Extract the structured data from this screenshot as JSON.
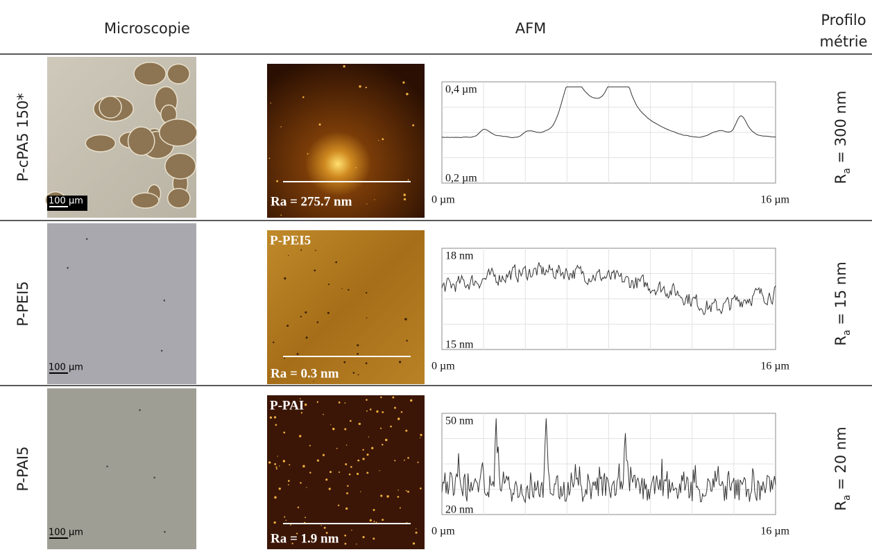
{
  "header": {
    "microscopy": "Microscopie",
    "afm": "AFM",
    "profilometry": [
      "Profilo",
      "métrie"
    ]
  },
  "rows": [
    {
      "label": "P-cPA5 150*",
      "scale_bar": "100 µm",
      "afm_ra": "Ra = 275.7 nm",
      "profile": {
        "y_top": "0,4 µm",
        "y_bottom": "0,2 µm",
        "x_left": "0 µm",
        "x_right": "16 µm"
      },
      "ra": {
        "symbol": "R",
        "subscript": "a",
        "text": " = 300 nm"
      }
    },
    {
      "label": "P-PEI5",
      "scale_bar": "100 µm",
      "afm_name": "P-PEI5",
      "afm_ra": "Ra = 0.3 nm",
      "profile": {
        "y_top": "18 nm",
        "y_bottom": "15 nm",
        "x_left": "0 µm",
        "x_right": "16 µm"
      },
      "ra": {
        "symbol": "R",
        "subscript": "a",
        "text": " = 15 nm"
      }
    },
    {
      "label": "P-PAI5",
      "scale_bar": "100 µm",
      "afm_name": "P-PAI",
      "afm_ra": "Ra = 1.9 nm",
      "profile": {
        "y_top": "50 nm",
        "y_bottom": "20 nm",
        "x_left": "0 µm",
        "x_right": "16 µm"
      },
      "ra": {
        "symbol": "R",
        "subscript": "a",
        "text": " = 20 nm"
      }
    }
  ]
}
